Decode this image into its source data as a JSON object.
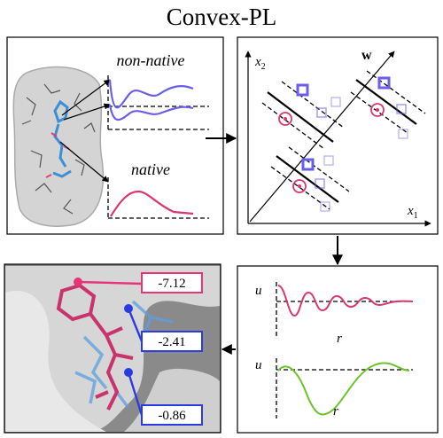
{
  "title": "Convex-PL",
  "features": {
    "upper_label": "non-native",
    "lower_label": "native"
  },
  "classifier": {
    "y_axis": {
      "base": "x",
      "sub": "2"
    },
    "x_axis": {
      "base": "x",
      "sub": "1"
    },
    "normal": "w"
  },
  "potentials": {
    "top": {
      "y_label": "u",
      "x_label": "r"
    },
    "bottom": {
      "y_label": "u",
      "x_label": "r"
    }
  },
  "docking": {
    "scores": [
      "-7.12",
      "-2.41",
      "-0.86"
    ]
  }
}
